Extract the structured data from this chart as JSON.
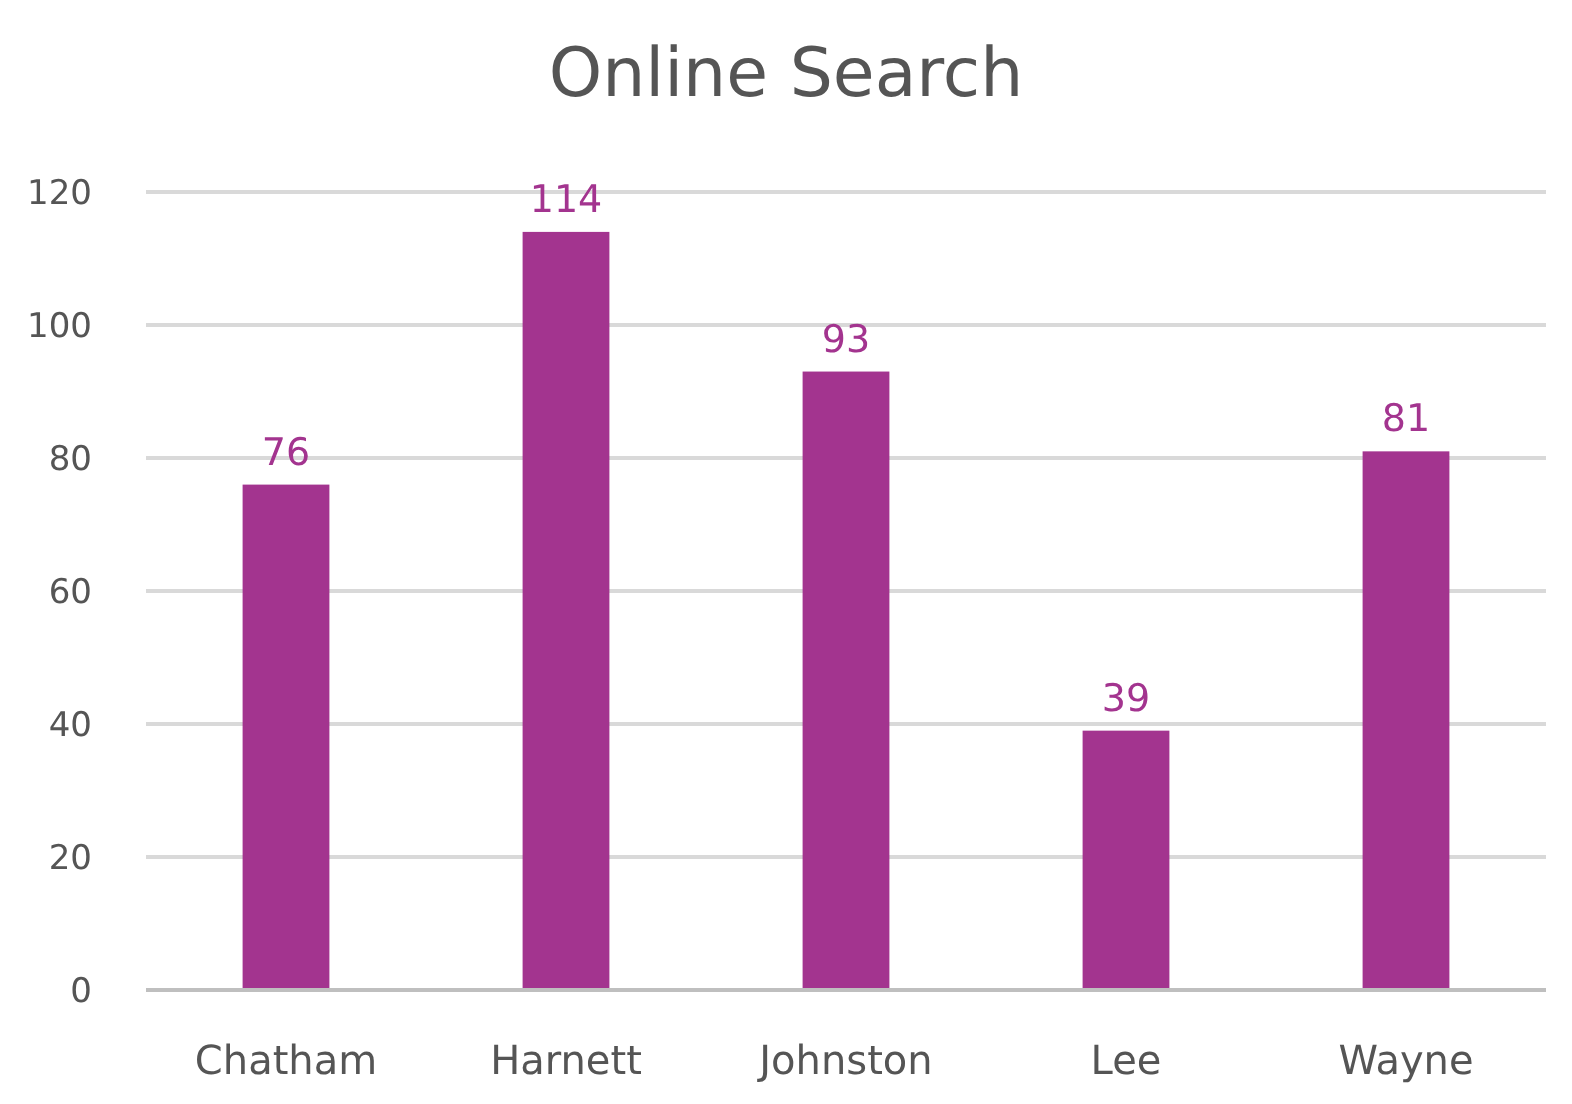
{
  "chart_data": {
    "type": "bar",
    "title": "Online Search",
    "categories": [
      "Chatham",
      "Harnett",
      "Johnston",
      "Lee",
      "Wayne"
    ],
    "values": [
      76,
      114,
      93,
      39,
      81
    ],
    "color": "#a3348f",
    "ylim": [
      0,
      120
    ],
    "yticks": [
      0,
      20,
      40,
      60,
      80,
      100,
      120
    ],
    "grid": "y",
    "data_labels": true
  }
}
